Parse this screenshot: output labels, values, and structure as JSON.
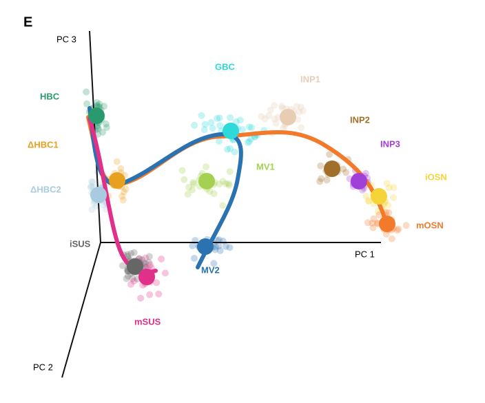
{
  "panel": "E",
  "axes": {
    "pc1": "PC 1",
    "pc2": "PC 2",
    "pc3": "PC 3"
  },
  "clusters": [
    {
      "name": "HBC",
      "color": "#2a9a6e"
    },
    {
      "name": "ΔHBC1",
      "color": "#e8a020"
    },
    {
      "name": "ΔHBC2",
      "color": "#a9cbe0"
    },
    {
      "name": "GBC",
      "color": "#2dd9d9"
    },
    {
      "name": "INP1",
      "color": "#e6cdb3"
    },
    {
      "name": "INP2",
      "color": "#a0702a"
    },
    {
      "name": "INP3",
      "color": "#a040d8"
    },
    {
      "name": "iOSN",
      "color": "#f5d43a"
    },
    {
      "name": "mOSN",
      "color": "#f37a2a"
    },
    {
      "name": "MV1",
      "color": "#a6d050"
    },
    {
      "name": "MV2",
      "color": "#2a72b0"
    },
    {
      "name": "iSUS",
      "color": "#666666"
    },
    {
      "name": "mSUS",
      "color": "#e0308a"
    }
  ]
}
